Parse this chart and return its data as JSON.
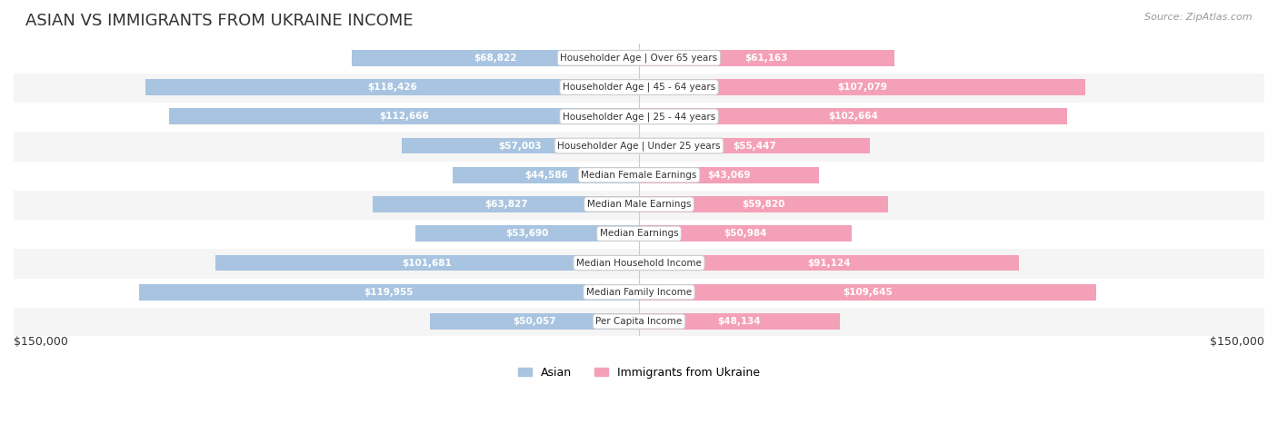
{
  "title": "ASIAN VS IMMIGRANTS FROM UKRAINE INCOME",
  "source": "Source: ZipAtlas.com",
  "categories": [
    "Per Capita Income",
    "Median Family Income",
    "Median Household Income",
    "Median Earnings",
    "Median Male Earnings",
    "Median Female Earnings",
    "Householder Age | Under 25 years",
    "Householder Age | 25 - 44 years",
    "Householder Age | 45 - 64 years",
    "Householder Age | Over 65 years"
  ],
  "asian_values": [
    50057,
    119955,
    101681,
    53690,
    63827,
    44586,
    57003,
    112666,
    118426,
    68822
  ],
  "ukraine_values": [
    48134,
    109645,
    91124,
    50984,
    59820,
    43069,
    55447,
    102664,
    107079,
    61163
  ],
  "asian_labels": [
    "$50,057",
    "$119,955",
    "$101,681",
    "$53,690",
    "$63,827",
    "$44,586",
    "$57,003",
    "$112,666",
    "$118,426",
    "$68,822"
  ],
  "ukraine_labels": [
    "$48,134",
    "$109,645",
    "$91,124",
    "$50,984",
    "$59,820",
    "$43,069",
    "$55,447",
    "$102,664",
    "$107,079",
    "$61,163"
  ],
  "asian_color": "#a8c4e0",
  "ukraine_color": "#f4a0b8",
  "asian_label_color_inside": "#ffffff",
  "asian_label_color_outside": "#888888",
  "ukraine_label_color_inside": "#ffffff",
  "ukraine_label_color_outside": "#888888",
  "max_value": 150000,
  "bar_height": 0.55,
  "row_bg_color_odd": "#f5f5f5",
  "row_bg_color_even": "#ffffff",
  "legend_asian": "Asian",
  "legend_ukraine": "Immigrants from Ukraine",
  "xlabel_left": "$150,000",
  "xlabel_right": "$150,000",
  "inside_label_threshold": 30000
}
